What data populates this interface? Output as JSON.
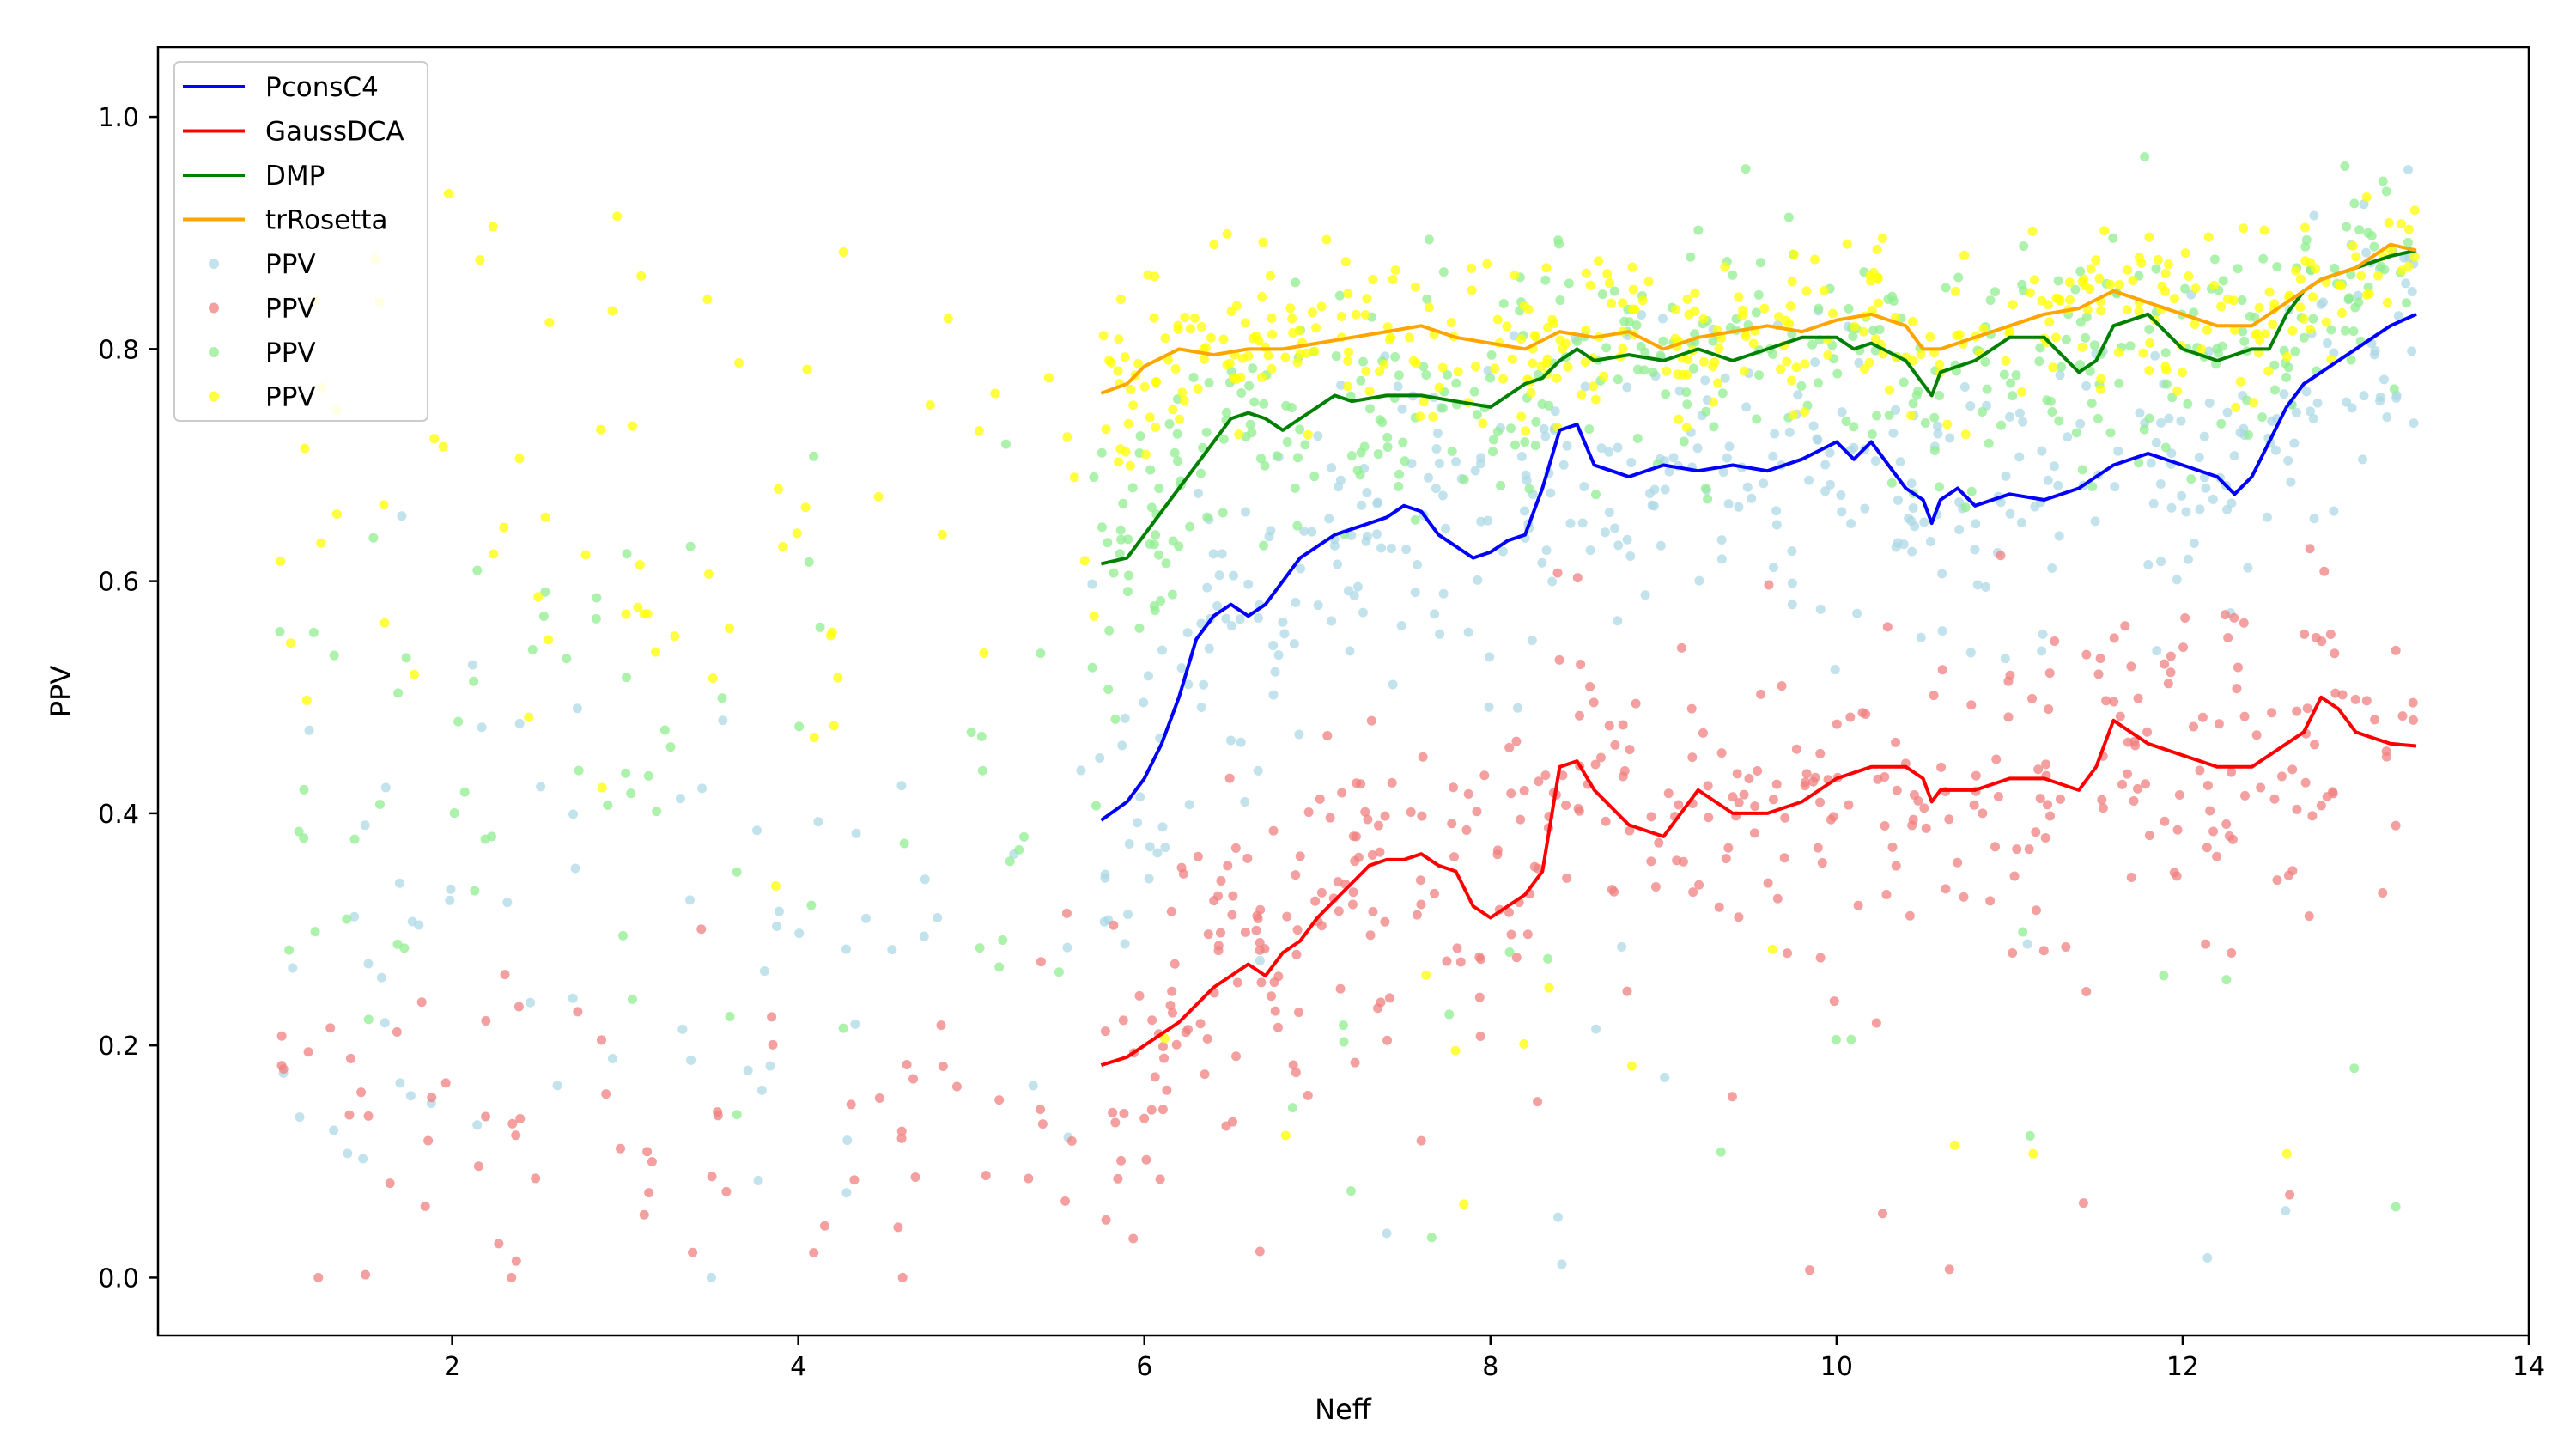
{
  "chart_data": {
    "type": "line",
    "title": "",
    "xlabel": "Neff",
    "ylabel": "PPV",
    "xlim": [
      0.3,
      14.0
    ],
    "ylim": [
      -0.05,
      1.06
    ],
    "xticks": [
      "2",
      "4",
      "6",
      "8",
      "10",
      "12",
      "14"
    ],
    "xtick_values": [
      2,
      4,
      6,
      8,
      10,
      12,
      14
    ],
    "yticks": [
      "0.0",
      "0.2",
      "0.4",
      "0.6",
      "0.8",
      "1.0"
    ],
    "ytick_values": [
      0.0,
      0.2,
      0.4,
      0.6,
      0.8,
      1.0
    ],
    "grid": false,
    "legend_position": "top-left",
    "series": [
      {
        "name": "PconsC4",
        "kind": "line",
        "color": "#0000ff",
        "x": [
          5.75,
          5.9,
          6.0,
          6.1,
          6.2,
          6.3,
          6.4,
          6.5,
          6.6,
          6.7,
          6.8,
          6.9,
          7.0,
          7.1,
          7.2,
          7.3,
          7.4,
          7.5,
          7.6,
          7.7,
          7.8,
          7.9,
          8.0,
          8.1,
          8.2,
          8.3,
          8.4,
          8.5,
          8.6,
          8.7,
          8.8,
          9.0,
          9.2,
          9.4,
          9.6,
          9.8,
          10.0,
          10.1,
          10.2,
          10.3,
          10.4,
          10.5,
          10.55,
          10.6,
          10.7,
          10.8,
          11.0,
          11.2,
          11.4,
          11.6,
          11.8,
          12.0,
          12.2,
          12.3,
          12.4,
          12.5,
          12.6,
          12.7,
          12.8,
          12.9,
          13.0,
          13.1,
          13.2,
          13.35
        ],
        "y": [
          0.394,
          0.41,
          0.43,
          0.46,
          0.5,
          0.55,
          0.57,
          0.58,
          0.57,
          0.58,
          0.6,
          0.62,
          0.63,
          0.64,
          0.645,
          0.65,
          0.655,
          0.665,
          0.66,
          0.64,
          0.63,
          0.62,
          0.625,
          0.635,
          0.64,
          0.68,
          0.73,
          0.735,
          0.7,
          0.695,
          0.69,
          0.7,
          0.695,
          0.7,
          0.695,
          0.705,
          0.72,
          0.705,
          0.72,
          0.7,
          0.68,
          0.67,
          0.65,
          0.67,
          0.68,
          0.665,
          0.675,
          0.67,
          0.68,
          0.7,
          0.71,
          0.7,
          0.69,
          0.675,
          0.69,
          0.72,
          0.75,
          0.77,
          0.78,
          0.79,
          0.8,
          0.81,
          0.82,
          0.83
        ]
      },
      {
        "name": "GaussDCA",
        "kind": "line",
        "color": "#ff0000",
        "x": [
          5.75,
          5.9,
          6.0,
          6.2,
          6.4,
          6.5,
          6.6,
          6.7,
          6.8,
          6.9,
          7.0,
          7.1,
          7.2,
          7.3,
          7.4,
          7.5,
          7.6,
          7.7,
          7.8,
          7.9,
          8.0,
          8.1,
          8.2,
          8.3,
          8.4,
          8.5,
          8.6,
          8.8,
          9.0,
          9.2,
          9.4,
          9.6,
          9.8,
          10.0,
          10.2,
          10.4,
          10.5,
          10.55,
          10.6,
          10.8,
          11.0,
          11.2,
          11.4,
          11.5,
          11.6,
          11.8,
          12.0,
          12.2,
          12.4,
          12.5,
          12.6,
          12.7,
          12.8,
          12.9,
          13.0,
          13.1,
          13.2,
          13.35
        ],
        "y": [
          0.183,
          0.19,
          0.2,
          0.22,
          0.25,
          0.26,
          0.27,
          0.26,
          0.28,
          0.29,
          0.31,
          0.325,
          0.34,
          0.355,
          0.36,
          0.36,
          0.365,
          0.355,
          0.35,
          0.32,
          0.31,
          0.32,
          0.33,
          0.35,
          0.44,
          0.445,
          0.42,
          0.39,
          0.38,
          0.42,
          0.4,
          0.4,
          0.41,
          0.43,
          0.44,
          0.44,
          0.43,
          0.41,
          0.42,
          0.42,
          0.43,
          0.43,
          0.42,
          0.44,
          0.48,
          0.46,
          0.45,
          0.44,
          0.44,
          0.45,
          0.46,
          0.47,
          0.5,
          0.49,
          0.47,
          0.465,
          0.46,
          0.458
        ]
      },
      {
        "name": "DMP",
        "kind": "line",
        "color": "#008000",
        "x": [
          5.75,
          5.9,
          6.0,
          6.1,
          6.2,
          6.3,
          6.4,
          6.5,
          6.6,
          6.7,
          6.8,
          6.9,
          7.0,
          7.1,
          7.2,
          7.4,
          7.6,
          7.8,
          8.0,
          8.1,
          8.2,
          8.3,
          8.4,
          8.5,
          8.6,
          8.8,
          9.0,
          9.2,
          9.4,
          9.6,
          9.8,
          10.0,
          10.1,
          10.2,
          10.4,
          10.5,
          10.55,
          10.6,
          10.8,
          11.0,
          11.2,
          11.4,
          11.5,
          11.6,
          11.8,
          12.0,
          12.2,
          12.4,
          12.5,
          12.6,
          12.7,
          12.8,
          13.0,
          13.2,
          13.35
        ],
        "y": [
          0.615,
          0.62,
          0.64,
          0.66,
          0.68,
          0.7,
          0.72,
          0.74,
          0.745,
          0.74,
          0.73,
          0.74,
          0.75,
          0.76,
          0.755,
          0.76,
          0.76,
          0.755,
          0.75,
          0.76,
          0.77,
          0.775,
          0.79,
          0.8,
          0.79,
          0.795,
          0.79,
          0.8,
          0.79,
          0.8,
          0.81,
          0.81,
          0.8,
          0.805,
          0.79,
          0.77,
          0.76,
          0.78,
          0.79,
          0.81,
          0.81,
          0.78,
          0.79,
          0.82,
          0.83,
          0.8,
          0.79,
          0.8,
          0.8,
          0.83,
          0.85,
          0.86,
          0.87,
          0.88,
          0.885
        ]
      },
      {
        "name": "trRosetta",
        "kind": "line",
        "color": "#ffa500",
        "x": [
          5.75,
          5.9,
          6.0,
          6.2,
          6.4,
          6.6,
          6.8,
          7.0,
          7.2,
          7.4,
          7.6,
          7.8,
          8.0,
          8.2,
          8.4,
          8.6,
          8.8,
          9.0,
          9.2,
          9.4,
          9.6,
          9.8,
          10.0,
          10.2,
          10.4,
          10.5,
          10.6,
          10.8,
          11.0,
          11.2,
          11.4,
          11.6,
          11.8,
          12.0,
          12.2,
          12.4,
          12.6,
          12.8,
          13.0,
          13.2,
          13.35
        ],
        "y": [
          0.762,
          0.77,
          0.785,
          0.8,
          0.795,
          0.8,
          0.8,
          0.805,
          0.81,
          0.815,
          0.82,
          0.81,
          0.805,
          0.8,
          0.815,
          0.81,
          0.815,
          0.8,
          0.81,
          0.815,
          0.82,
          0.815,
          0.825,
          0.83,
          0.82,
          0.8,
          0.8,
          0.81,
          0.82,
          0.83,
          0.835,
          0.85,
          0.84,
          0.83,
          0.82,
          0.82,
          0.84,
          0.86,
          0.87,
          0.89,
          0.885
        ]
      },
      {
        "name": "PPV",
        "kind": "scatter",
        "color": "#add8e6",
        "group": "PconsC4"
      },
      {
        "name": "PPV",
        "kind": "scatter",
        "color": "#f08080",
        "group": "GaussDCA"
      },
      {
        "name": "PPV",
        "kind": "scatter",
        "color": "#90ee90",
        "group": "DMP"
      },
      {
        "name": "PPV",
        "kind": "scatter",
        "color": "#ffff00",
        "group": "trRosetta"
      }
    ]
  }
}
